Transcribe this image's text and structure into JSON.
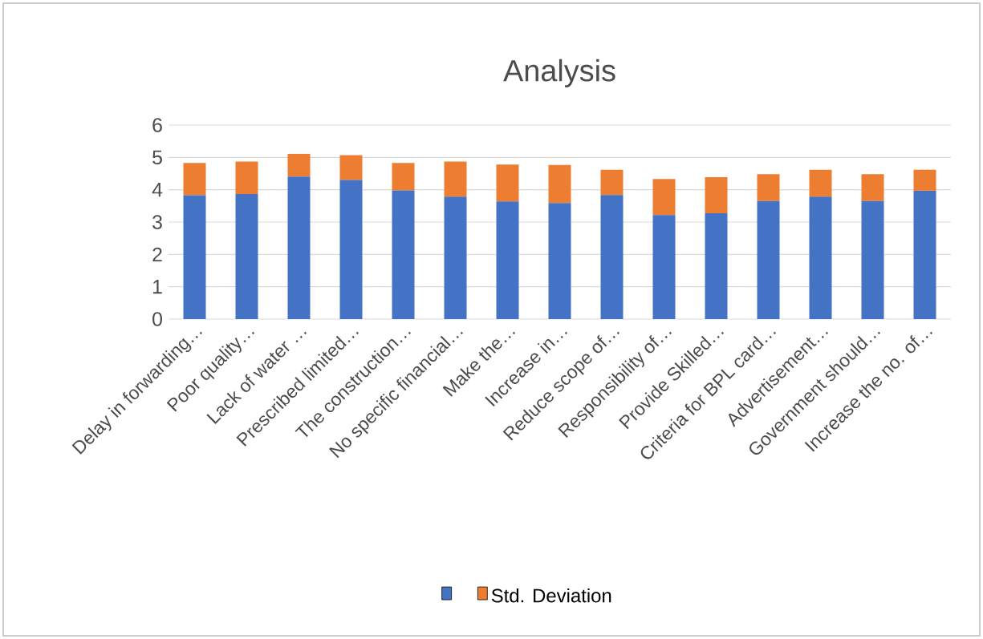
{
  "chart_data": {
    "type": "bar",
    "title": "Analysis",
    "stacked": true,
    "categories": [
      "Delay in forwarding…",
      "Poor quality…",
      "Lack of water …",
      "Prescribed limited…",
      "The construction…",
      "No specific financial…",
      "Make the…",
      "Increase in…",
      "Reduce scope of…",
      "Responsibility of…",
      "Provide Skilled…",
      "Criteria for BPL card…",
      "Advertisement…",
      "Government should…",
      "Increase the no. of…"
    ],
    "series": [
      {
        "color": "#4472c4",
        "values": [
          3.83,
          3.87,
          4.41,
          4.3,
          3.98,
          3.79,
          3.64,
          3.59,
          3.84,
          3.22,
          3.27,
          3.65,
          3.79,
          3.65,
          3.97
        ]
      },
      {
        "name": "Std. Deviation",
        "color": "#ed7d31",
        "values": [
          1.0,
          1.0,
          0.7,
          0.77,
          0.85,
          1.08,
          1.14,
          1.18,
          0.78,
          1.11,
          1.12,
          0.83,
          0.83,
          0.83,
          0.65
        ]
      }
    ],
    "ylim": [
      0,
      6
    ],
    "yticks": [
      0,
      1,
      2,
      3,
      4,
      5,
      6
    ],
    "grid": "y",
    "legend": "bottom"
  }
}
